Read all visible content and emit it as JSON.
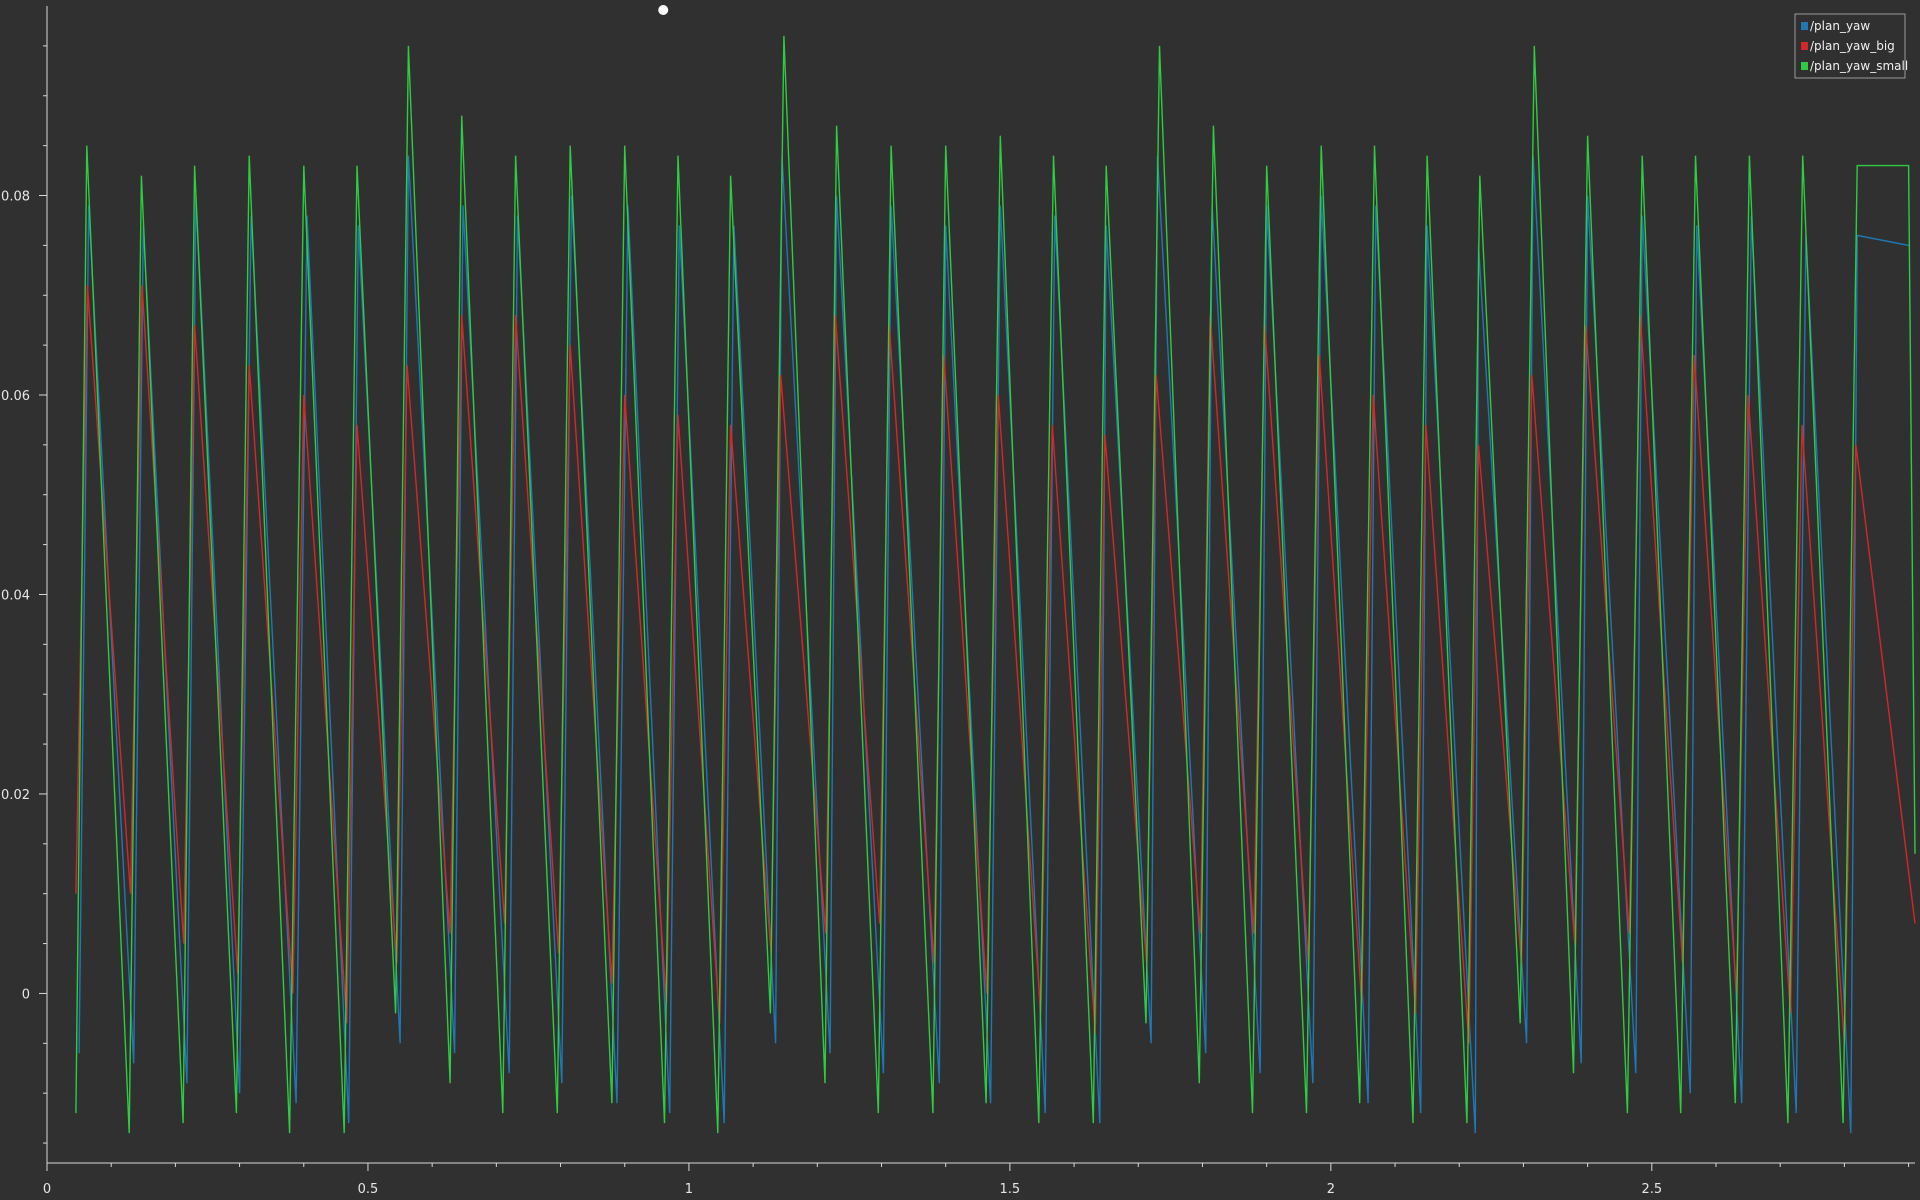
{
  "chart_data": {
    "type": "line",
    "title": "",
    "xlabel": "",
    "ylabel": "",
    "xlim": [
      0,
      2.91
    ],
    "ylim": [
      -0.017,
      0.099
    ],
    "grid": false,
    "legend_position": "top-right",
    "background_color": "#303030",
    "x_ticks": [
      0,
      0.5,
      1,
      1.5,
      2,
      2.5
    ],
    "x_tick_labels": [
      "0",
      "0.5",
      "1",
      "1.5",
      "2",
      "2.5"
    ],
    "y_ticks": [
      0,
      0.02,
      0.04,
      0.06,
      0.08
    ],
    "y_tick_labels": [
      "0",
      "0.02",
      "0.04",
      "0.06",
      "0.08"
    ],
    "cursor_marker": {
      "x": 0.96,
      "label": ""
    },
    "series": [
      {
        "name": "/plan_yaw",
        "color": "#1f77b4",
        "peaks": [
          [
            0.065,
            0.079
          ],
          [
            0.15,
            0.077
          ],
          [
            0.232,
            0.08
          ],
          [
            0.318,
            0.078
          ],
          [
            0.405,
            0.078
          ],
          [
            0.485,
            0.077
          ],
          [
            0.563,
            0.084
          ],
          [
            0.648,
            0.079
          ],
          [
            0.733,
            0.078
          ],
          [
            0.817,
            0.08
          ],
          [
            0.905,
            0.079
          ],
          [
            0.985,
            0.077
          ],
          [
            1.07,
            0.077
          ],
          [
            1.145,
            0.084
          ],
          [
            1.23,
            0.08
          ],
          [
            1.315,
            0.079
          ],
          [
            1.4,
            0.077
          ],
          [
            1.485,
            0.079
          ],
          [
            1.57,
            0.078
          ],
          [
            1.65,
            0.077
          ],
          [
            1.73,
            0.084
          ],
          [
            1.815,
            0.079
          ],
          [
            1.9,
            0.079
          ],
          [
            1.985,
            0.08
          ],
          [
            2.07,
            0.079
          ],
          [
            2.15,
            0.077
          ],
          [
            2.23,
            0.075
          ],
          [
            2.315,
            0.084
          ],
          [
            2.4,
            0.08
          ],
          [
            2.485,
            0.078
          ],
          [
            2.57,
            0.077
          ],
          [
            2.655,
            0.078
          ],
          [
            2.74,
            0.076
          ],
          [
            2.82,
            0.076
          ],
          [
            2.9,
            0.075
          ]
        ],
        "troughs": [
          [
            0.05,
            -0.006
          ],
          [
            0.135,
            -0.007
          ],
          [
            0.218,
            -0.009
          ],
          [
            0.3,
            -0.01
          ],
          [
            0.388,
            -0.011
          ],
          [
            0.47,
            -0.013
          ],
          [
            0.55,
            -0.005
          ],
          [
            0.635,
            -0.006
          ],
          [
            0.72,
            -0.008
          ],
          [
            0.802,
            -0.009
          ],
          [
            0.888,
            -0.011
          ],
          [
            0.97,
            -0.012
          ],
          [
            1.055,
            -0.013
          ],
          [
            1.135,
            -0.005
          ],
          [
            1.22,
            -0.006
          ],
          [
            1.303,
            -0.008
          ],
          [
            1.39,
            -0.009
          ],
          [
            1.47,
            -0.011
          ],
          [
            1.555,
            -0.012
          ],
          [
            1.64,
            -0.013
          ],
          [
            1.72,
            -0.005
          ],
          [
            1.805,
            -0.006
          ],
          [
            1.89,
            -0.008
          ],
          [
            1.972,
            -0.009
          ],
          [
            2.058,
            -0.011
          ],
          [
            2.14,
            -0.012
          ],
          [
            2.225,
            -0.014
          ],
          [
            2.305,
            -0.005
          ],
          [
            2.39,
            -0.007
          ],
          [
            2.475,
            -0.008
          ],
          [
            2.56,
            -0.01
          ],
          [
            2.64,
            -0.011
          ],
          [
            2.725,
            -0.012
          ],
          [
            2.81,
            -0.014
          ]
        ]
      },
      {
        "name": "/plan_yaw_big",
        "color": "#d62728",
        "peaks": [
          [
            0.063,
            0.071
          ],
          [
            0.148,
            0.071
          ],
          [
            0.23,
            0.067
          ],
          [
            0.315,
            0.063
          ],
          [
            0.4,
            0.06
          ],
          [
            0.483,
            0.057
          ],
          [
            0.561,
            0.063
          ],
          [
            0.646,
            0.068
          ],
          [
            0.73,
            0.068
          ],
          [
            0.815,
            0.065
          ],
          [
            0.9,
            0.06
          ],
          [
            0.983,
            0.058
          ],
          [
            1.065,
            0.057
          ],
          [
            1.143,
            0.062
          ],
          [
            1.228,
            0.068
          ],
          [
            1.312,
            0.067
          ],
          [
            1.397,
            0.064
          ],
          [
            1.482,
            0.06
          ],
          [
            1.566,
            0.057
          ],
          [
            1.648,
            0.056
          ],
          [
            1.728,
            0.062
          ],
          [
            1.812,
            0.068
          ],
          [
            1.897,
            0.067
          ],
          [
            1.982,
            0.064
          ],
          [
            2.066,
            0.06
          ],
          [
            2.148,
            0.057
          ],
          [
            2.23,
            0.055
          ],
          [
            2.313,
            0.062
          ],
          [
            2.397,
            0.067
          ],
          [
            2.482,
            0.068
          ],
          [
            2.566,
            0.064
          ],
          [
            2.65,
            0.06
          ],
          [
            2.734,
            0.057
          ],
          [
            2.818,
            0.055
          ]
        ],
        "troughs": [
          [
            0.045,
            0.01
          ],
          [
            0.13,
            0.01
          ],
          [
            0.213,
            0.005
          ],
          [
            0.297,
            0.002
          ],
          [
            0.383,
            0.0
          ],
          [
            0.467,
            -0.003
          ],
          [
            0.545,
            0.003
          ],
          [
            0.628,
            0.006
          ],
          [
            0.713,
            0.007
          ],
          [
            0.797,
            0.004
          ],
          [
            0.88,
            0.001
          ],
          [
            0.965,
            -0.001
          ],
          [
            1.048,
            -0.003
          ],
          [
            1.128,
            0.004
          ],
          [
            1.213,
            0.006
          ],
          [
            1.297,
            0.007
          ],
          [
            1.382,
            0.003
          ],
          [
            1.464,
            0.0
          ],
          [
            1.548,
            -0.002
          ],
          [
            1.633,
            -0.004
          ],
          [
            1.713,
            0.003
          ],
          [
            1.797,
            0.006
          ],
          [
            1.88,
            0.006
          ],
          [
            1.965,
            0.003
          ],
          [
            2.048,
            -0.001
          ],
          [
            2.132,
            -0.002
          ],
          [
            2.215,
            -0.005
          ],
          [
            2.297,
            0.003
          ],
          [
            2.38,
            0.005
          ],
          [
            2.465,
            0.006
          ],
          [
            2.548,
            0.003
          ],
          [
            2.632,
            0.0
          ],
          [
            2.716,
            -0.002
          ],
          [
            2.8,
            -0.005
          ],
          [
            2.91,
            0.007
          ]
        ]
      },
      {
        "name": "/plan_yaw_small",
        "color": "#2ecc40",
        "peaks": [
          [
            0.062,
            0.085
          ],
          [
            0.147,
            0.082
          ],
          [
            0.23,
            0.083
          ],
          [
            0.315,
            0.084
          ],
          [
            0.4,
            0.083
          ],
          [
            0.483,
            0.083
          ],
          [
            0.563,
            0.095
          ],
          [
            0.646,
            0.088
          ],
          [
            0.73,
            0.084
          ],
          [
            0.815,
            0.085
          ],
          [
            0.9,
            0.085
          ],
          [
            0.983,
            0.084
          ],
          [
            1.065,
            0.082
          ],
          [
            1.148,
            0.096
          ],
          [
            1.23,
            0.087
          ],
          [
            1.315,
            0.085
          ],
          [
            1.4,
            0.085
          ],
          [
            1.485,
            0.086
          ],
          [
            1.568,
            0.084
          ],
          [
            1.65,
            0.083
          ],
          [
            1.733,
            0.095
          ],
          [
            1.817,
            0.087
          ],
          [
            1.9,
            0.083
          ],
          [
            1.985,
            0.085
          ],
          [
            2.068,
            0.085
          ],
          [
            2.15,
            0.084
          ],
          [
            2.232,
            0.082
          ],
          [
            2.317,
            0.095
          ],
          [
            2.4,
            0.086
          ],
          [
            2.485,
            0.084
          ],
          [
            2.568,
            0.084
          ],
          [
            2.652,
            0.084
          ],
          [
            2.735,
            0.084
          ],
          [
            2.82,
            0.083
          ],
          [
            2.9,
            0.083
          ]
        ],
        "troughs": [
          [
            0.045,
            -0.012
          ],
          [
            0.128,
            -0.014
          ],
          [
            0.212,
            -0.013
          ],
          [
            0.295,
            -0.012
          ],
          [
            0.378,
            -0.014
          ],
          [
            0.463,
            -0.014
          ],
          [
            0.543,
            -0.002
          ],
          [
            0.628,
            -0.009
          ],
          [
            0.71,
            -0.012
          ],
          [
            0.795,
            -0.012
          ],
          [
            0.88,
            -0.011
          ],
          [
            0.962,
            -0.013
          ],
          [
            1.045,
            -0.014
          ],
          [
            1.127,
            -0.002
          ],
          [
            1.212,
            -0.009
          ],
          [
            1.295,
            -0.012
          ],
          [
            1.38,
            -0.012
          ],
          [
            1.463,
            -0.011
          ],
          [
            1.545,
            -0.013
          ],
          [
            1.63,
            -0.013
          ],
          [
            1.712,
            -0.003
          ],
          [
            1.795,
            -0.009
          ],
          [
            1.878,
            -0.012
          ],
          [
            1.962,
            -0.012
          ],
          [
            2.045,
            -0.011
          ],
          [
            2.128,
            -0.013
          ],
          [
            2.212,
            -0.013
          ],
          [
            2.295,
            -0.003
          ],
          [
            2.378,
            -0.008
          ],
          [
            2.462,
            -0.012
          ],
          [
            2.545,
            -0.012
          ],
          [
            2.63,
            -0.011
          ],
          [
            2.712,
            -0.013
          ],
          [
            2.798,
            -0.013
          ],
          [
            2.91,
            0.014
          ]
        ]
      }
    ]
  }
}
